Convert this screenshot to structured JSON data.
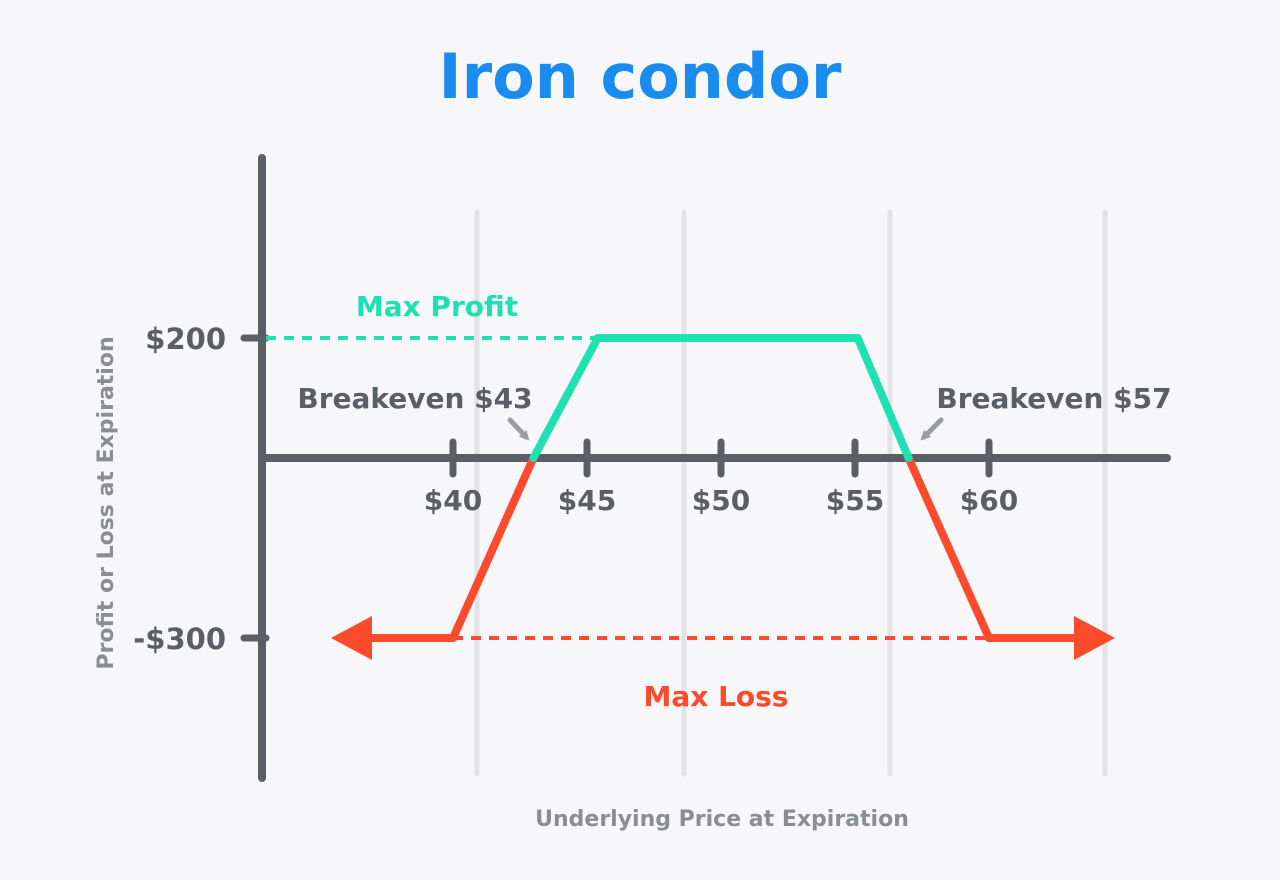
{
  "chart_data": {
    "type": "line",
    "title": "Iron condor",
    "xlabel": "Underlying Price at Expiration",
    "ylabel": "Profit or Loss at Expiration",
    "x_ticks": [
      "$40",
      "$45",
      "$50",
      "$55",
      "$60"
    ],
    "x_tick_values": [
      40,
      45,
      50,
      55,
      60
    ],
    "y_ticks": [
      "$200",
      "-$300"
    ],
    "y_tick_values": [
      200,
      -300
    ],
    "xlim": [
      29,
      64
    ],
    "ylim": [
      -480,
      480
    ],
    "grid": "vertical",
    "series": [
      {
        "segment": "profit",
        "color": "#1fe0b0",
        "x": [
          43,
          45.4,
          55.1,
          57
        ],
        "y": [
          0,
          200,
          200,
          0
        ]
      },
      {
        "segment": "loss",
        "color": "#fb4a2c",
        "x": [
          40,
          43,
          57,
          60
        ],
        "y": [
          -300,
          0,
          0,
          -300
        ],
        "arrows": "both-ends"
      }
    ],
    "annotations": {
      "max_profit": "Max Profit",
      "max_loss": "Max Loss",
      "breakeven_low": "Breakeven $43",
      "breakeven_high": "Breakeven $57"
    },
    "colors": {
      "title": "#1a8cf0",
      "profit": "#1fe0b0",
      "loss": "#fb4a2c",
      "axis": "#5a5f66",
      "grid": "#e3e3e6",
      "arrow_hint": "#9a9ea3",
      "axis_title": "#8a8e94"
    }
  }
}
